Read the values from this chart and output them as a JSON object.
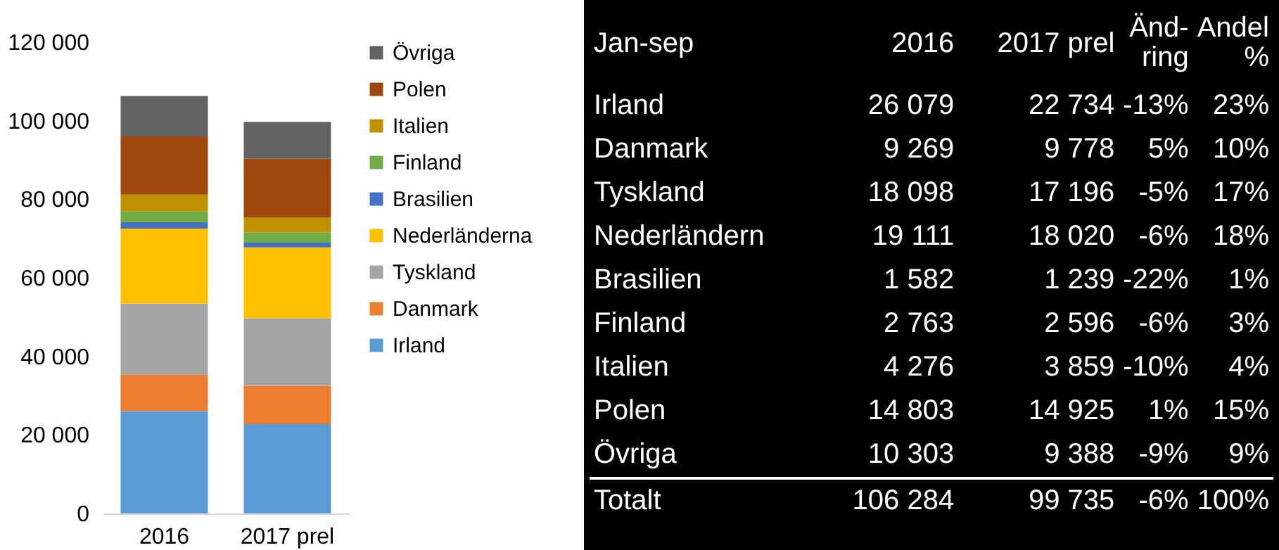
{
  "chart_data": [
    {
      "type": "bar",
      "stacked": true,
      "categories": [
        "2016",
        "2017 prel"
      ],
      "series": [
        {
          "name": "Irland",
          "color": "#5b9bd5",
          "values": [
            26079,
            22734
          ]
        },
        {
          "name": "Danmark",
          "color": "#ed7d31",
          "values": [
            9269,
            9778
          ]
        },
        {
          "name": "Tyskland",
          "color": "#a5a5a5",
          "values": [
            18098,
            17196
          ]
        },
        {
          "name": "Nederländerna",
          "color": "#ffc000",
          "values": [
            19111,
            18020
          ]
        },
        {
          "name": "Brasilien",
          "color": "#4472c4",
          "values": [
            1582,
            1239
          ]
        },
        {
          "name": "Finland",
          "color": "#70ad47",
          "values": [
            2763,
            2596
          ]
        },
        {
          "name": "Italien",
          "color": "#bf9000",
          "values": [
            4276,
            3859
          ]
        },
        {
          "name": "Polen",
          "color": "#9e480e",
          "values": [
            14803,
            14925
          ]
        },
        {
          "name": "Övriga",
          "color": "#636363",
          "values": [
            10303,
            9388
          ]
        }
      ],
      "ylim": [
        0,
        120000
      ],
      "yticks": [
        {
          "value": 0,
          "label": "0"
        },
        {
          "value": 20000,
          "label": "20 000"
        },
        {
          "value": 40000,
          "label": "40 000"
        },
        {
          "value": 60000,
          "label": "60 000"
        },
        {
          "value": 80000,
          "label": "80 000"
        },
        {
          "value": 100000,
          "label": "100 000"
        },
        {
          "value": 120000,
          "label": "120 000"
        }
      ],
      "grid": false,
      "legend": "right"
    },
    {
      "type": "other",
      "annotations": [
        "Jan-sep",
        "2016",
        "2017 prel",
        "Änd-ring",
        "Andel %",
        "Irland",
        "26 079",
        "22 734",
        "-13%",
        "23%",
        "Danmark",
        "9 269",
        "9 778",
        "5%",
        "10%",
        "Tyskland",
        "18 098",
        "17 196",
        "-5%",
        "17%",
        "Nederländern",
        "19 111",
        "18 020",
        "-6%",
        "18%",
        "Brasilien",
        "1 582",
        "1 239",
        "-22%",
        "1%",
        "Finland",
        "2 763",
        "2 596",
        "-6%",
        "3%",
        "Italien",
        "4 276",
        "3 859",
        "-10%",
        "4%",
        "Polen",
        "14 803",
        "14 925",
        "1%",
        "15%",
        "Övriga",
        "10 303",
        "9 388",
        "-9%",
        "9%",
        "Totalt",
        "106 284",
        "99 735",
        "-6%",
        "100%"
      ]
    }
  ]
}
